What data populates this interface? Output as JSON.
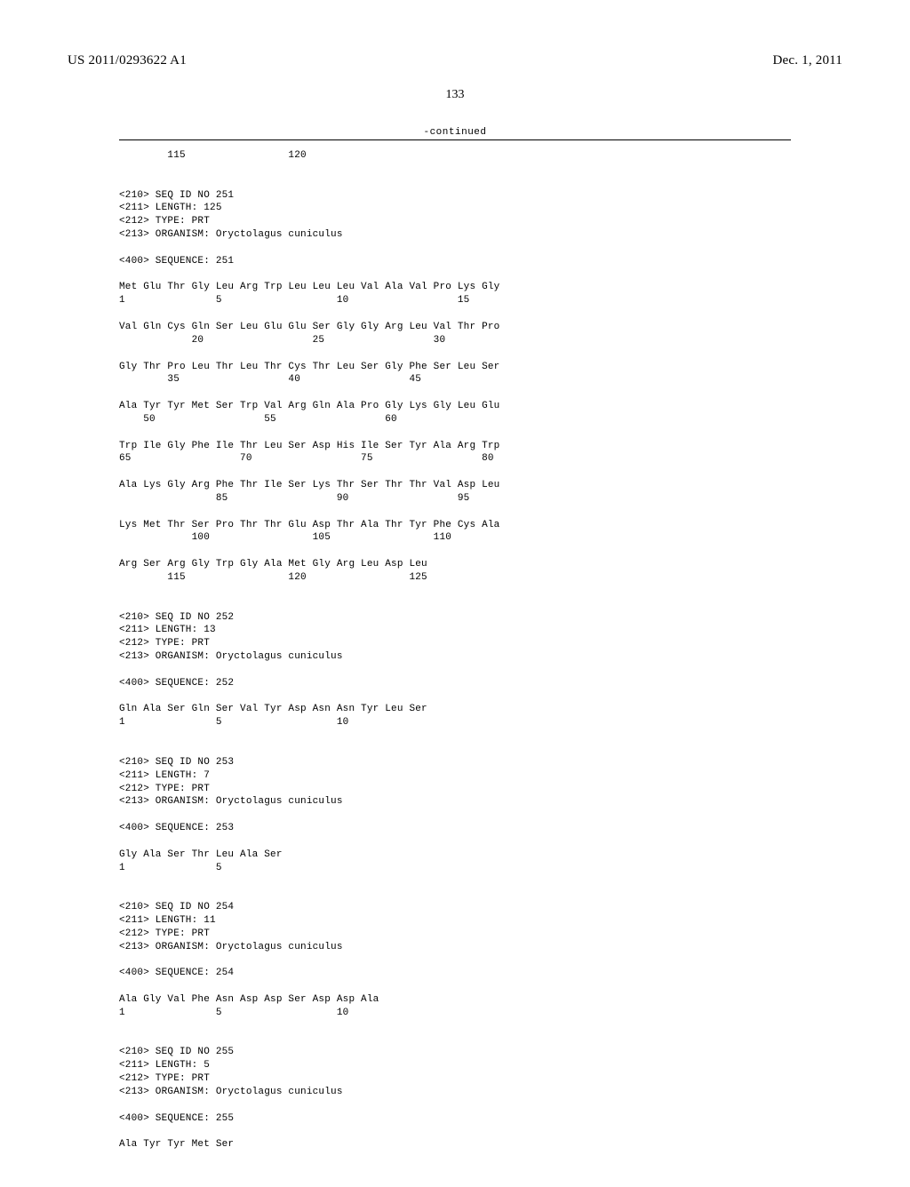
{
  "header": {
    "pub_number": "US 2011/0293622 A1",
    "pub_date": "Dec. 1, 2011"
  },
  "page_number": "133",
  "continued_label": "-continued",
  "seq_body": "        115                 120\n\n\n<210> SEQ ID NO 251\n<211> LENGTH: 125\n<212> TYPE: PRT\n<213> ORGANISM: Oryctolagus cuniculus\n\n<400> SEQUENCE: 251\n\nMet Glu Thr Gly Leu Arg Trp Leu Leu Leu Val Ala Val Pro Lys Gly\n1               5                   10                  15\n\nVal Gln Cys Gln Ser Leu Glu Glu Ser Gly Gly Arg Leu Val Thr Pro\n            20                  25                  30\n\nGly Thr Pro Leu Thr Leu Thr Cys Thr Leu Ser Gly Phe Ser Leu Ser\n        35                  40                  45\n\nAla Tyr Tyr Met Ser Trp Val Arg Gln Ala Pro Gly Lys Gly Leu Glu\n    50                  55                  60\n\nTrp Ile Gly Phe Ile Thr Leu Ser Asp His Ile Ser Tyr Ala Arg Trp\n65                  70                  75                  80\n\nAla Lys Gly Arg Phe Thr Ile Ser Lys Thr Ser Thr Thr Val Asp Leu\n                85                  90                  95\n\nLys Met Thr Ser Pro Thr Thr Glu Asp Thr Ala Thr Tyr Phe Cys Ala\n            100                 105                 110\n\nArg Ser Arg Gly Trp Gly Ala Met Gly Arg Leu Asp Leu\n        115                 120                 125\n\n\n<210> SEQ ID NO 252\n<211> LENGTH: 13\n<212> TYPE: PRT\n<213> ORGANISM: Oryctolagus cuniculus\n\n<400> SEQUENCE: 252\n\nGln Ala Ser Gln Ser Val Tyr Asp Asn Asn Tyr Leu Ser\n1               5                   10\n\n\n<210> SEQ ID NO 253\n<211> LENGTH: 7\n<212> TYPE: PRT\n<213> ORGANISM: Oryctolagus cuniculus\n\n<400> SEQUENCE: 253\n\nGly Ala Ser Thr Leu Ala Ser\n1               5\n\n\n<210> SEQ ID NO 254\n<211> LENGTH: 11\n<212> TYPE: PRT\n<213> ORGANISM: Oryctolagus cuniculus\n\n<400> SEQUENCE: 254\n\nAla Gly Val Phe Asn Asp Asp Ser Asp Asp Ala\n1               5                   10\n\n\n<210> SEQ ID NO 255\n<211> LENGTH: 5\n<212> TYPE: PRT\n<213> ORGANISM: Oryctolagus cuniculus\n\n<400> SEQUENCE: 255\n\nAla Tyr Tyr Met Ser"
}
